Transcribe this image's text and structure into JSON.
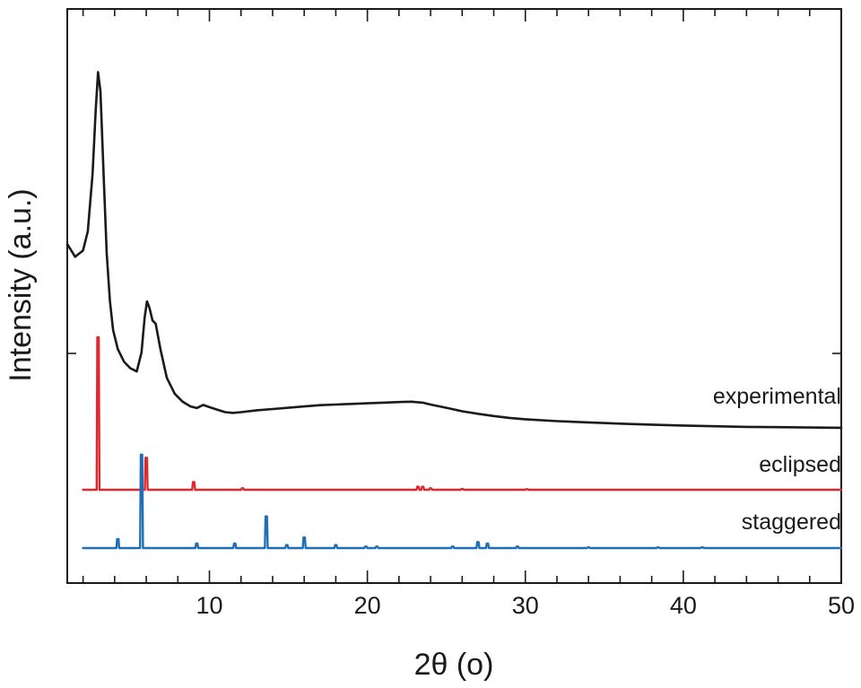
{
  "chart_data": {
    "type": "line",
    "xlabel": "2θ (o)",
    "ylabel": "Intensity (a.u.)",
    "xlim": [
      1,
      50
    ],
    "x_ticks": [
      10,
      20,
      30,
      40,
      50
    ],
    "y_ticks_labeled": false,
    "grid": false,
    "legend": "none",
    "series": [
      {
        "name": "experimental",
        "color": "#1a1a1a",
        "points": [
          [
            1.0,
            0.58
          ],
          [
            1.5,
            0.54
          ],
          [
            2.0,
            0.56
          ],
          [
            2.3,
            0.62
          ],
          [
            2.6,
            0.8
          ],
          [
            2.8,
            1.0
          ],
          [
            2.95,
            1.12
          ],
          [
            3.1,
            1.06
          ],
          [
            3.3,
            0.8
          ],
          [
            3.5,
            0.55
          ],
          [
            3.7,
            0.4
          ],
          [
            3.9,
            0.31
          ],
          [
            4.2,
            0.25
          ],
          [
            4.6,
            0.21
          ],
          [
            5.0,
            0.19
          ],
          [
            5.4,
            0.18
          ],
          [
            5.7,
            0.24
          ],
          [
            5.9,
            0.35
          ],
          [
            6.05,
            0.4
          ],
          [
            6.2,
            0.38
          ],
          [
            6.4,
            0.34
          ],
          [
            6.6,
            0.33
          ],
          [
            6.9,
            0.25
          ],
          [
            7.3,
            0.16
          ],
          [
            7.8,
            0.11
          ],
          [
            8.3,
            0.085
          ],
          [
            8.8,
            0.07
          ],
          [
            9.2,
            0.065
          ],
          [
            9.6,
            0.075
          ],
          [
            10.0,
            0.068
          ],
          [
            10.5,
            0.06
          ],
          [
            11.0,
            0.052
          ],
          [
            11.5,
            0.05
          ],
          [
            12.0,
            0.052
          ],
          [
            13.0,
            0.058
          ],
          [
            14.0,
            0.062
          ],
          [
            15.0,
            0.066
          ],
          [
            16.0,
            0.07
          ],
          [
            17.0,
            0.074
          ],
          [
            18.0,
            0.076
          ],
          [
            19.0,
            0.078
          ],
          [
            20.0,
            0.08
          ],
          [
            21.0,
            0.082
          ],
          [
            22.0,
            0.084
          ],
          [
            22.8,
            0.085
          ],
          [
            23.5,
            0.082
          ],
          [
            24.0,
            0.076
          ],
          [
            25.0,
            0.066
          ],
          [
            26.0,
            0.055
          ],
          [
            27.0,
            0.047
          ],
          [
            28.0,
            0.04
          ],
          [
            29.0,
            0.034
          ],
          [
            30.0,
            0.03
          ],
          [
            32.0,
            0.024
          ],
          [
            34.0,
            0.02
          ],
          [
            36.0,
            0.016
          ],
          [
            38.0,
            0.013
          ],
          [
            40.0,
            0.01
          ],
          [
            42.0,
            0.008
          ],
          [
            44.0,
            0.006
          ],
          [
            46.0,
            0.005
          ],
          [
            48.0,
            0.004
          ],
          [
            50.0,
            0.003
          ]
        ]
      },
      {
        "name": "eclipsed",
        "color": "#e0282e",
        "baseline": 0,
        "peaks": [
          [
            2.95,
            1.0
          ],
          [
            6.0,
            0.21
          ],
          [
            9.0,
            0.05
          ],
          [
            12.1,
            0.01
          ],
          [
            23.2,
            0.02
          ],
          [
            23.5,
            0.02
          ],
          [
            24.0,
            0.01
          ],
          [
            26.0,
            0.005
          ],
          [
            30.1,
            0.004
          ]
        ]
      },
      {
        "name": "staggered",
        "color": "#1f6fb6",
        "baseline": 0,
        "peaks": [
          [
            4.2,
            0.06
          ],
          [
            5.7,
            0.62
          ],
          [
            9.2,
            0.03
          ],
          [
            11.6,
            0.03
          ],
          [
            13.6,
            0.21
          ],
          [
            14.9,
            0.02
          ],
          [
            16.0,
            0.07
          ],
          [
            18.0,
            0.02
          ],
          [
            19.9,
            0.01
          ],
          [
            20.6,
            0.01
          ],
          [
            25.4,
            0.01
          ],
          [
            27.0,
            0.04
          ],
          [
            27.6,
            0.03
          ],
          [
            29.5,
            0.01
          ],
          [
            34.0,
            0.005
          ],
          [
            38.4,
            0.005
          ],
          [
            41.2,
            0.005
          ]
        ]
      }
    ]
  }
}
